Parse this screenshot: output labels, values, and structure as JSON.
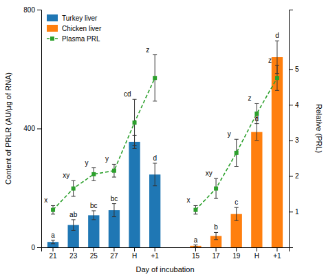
{
  "chart_data": {
    "type": "bar",
    "xlabel": "Day of incubation",
    "ylabel": "Content of PRLR (AU/μg of RNA)",
    "y2label": "Relative (PRL)",
    "categories": [
      "21",
      "23",
      "25",
      "27",
      "H",
      "+1",
      null,
      "15",
      "17",
      "19",
      "H",
      "+1"
    ],
    "series": [
      {
        "name": "Turkey liver",
        "type": "bar",
        "values": [
          18,
          75,
          108,
          125,
          355,
          245,
          null,
          null,
          null,
          null,
          null,
          null
        ],
        "errors": [
          6,
          18,
          15,
          22,
          22,
          38,
          null,
          null,
          null,
          null,
          null,
          null
        ],
        "annotations": [
          "a",
          "ab",
          "bc",
          "bc",
          null,
          "d",
          null,
          null,
          null,
          null,
          null,
          null
        ]
      },
      {
        "name": "Chicken liver",
        "type": "bar",
        "values": [
          null,
          null,
          null,
          null,
          null,
          null,
          null,
          5,
          38,
          112,
          388,
          640
        ],
        "errors": [
          null,
          null,
          null,
          null,
          null,
          null,
          null,
          3,
          12,
          22,
          28,
          55
        ],
        "annotations": [
          null,
          null,
          null,
          null,
          null,
          null,
          null,
          "a",
          "b",
          "c",
          "d",
          "d"
        ]
      },
      {
        "name": "Plasma PRL",
        "type": "line",
        "axis": "y2",
        "marker": "square",
        "line_style": "dashed",
        "values": [
          1.05,
          1.65,
          2.05,
          2.15,
          3.5,
          4.75,
          null,
          1.05,
          1.65,
          2.65,
          3.75,
          4.75
        ],
        "errors": [
          0.12,
          0.22,
          0.18,
          0.18,
          0.65,
          0.65,
          null,
          0.12,
          0.28,
          0.38,
          0.28,
          0.35
        ],
        "annotations": [
          "x",
          "xy",
          "y",
          "y",
          "cd",
          "z",
          null,
          "x",
          "xy",
          "y",
          "z",
          "z"
        ]
      }
    ],
    "ylim": [
      0,
      800
    ],
    "yticks": [
      0,
      400,
      800
    ],
    "y2lim": [
      0,
      6.667
    ],
    "y2ticks": [
      1,
      2,
      3,
      4,
      5
    ],
    "legend": "upper left"
  }
}
